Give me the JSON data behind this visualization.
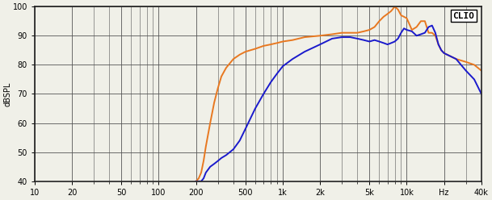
{
  "title": "CLIO",
  "ylabel": "dBSPL",
  "xlabel_ticks": [
    "10",
    "20",
    "50",
    "100",
    "200",
    "500",
    "1k",
    "2k",
    "5k",
    "10k",
    "Hz",
    "40k"
  ],
  "xlabel_freqs": [
    10,
    20,
    50,
    100,
    200,
    500,
    1000,
    2000,
    5000,
    10000,
    20000,
    40000
  ],
  "ylim": [
    40,
    100
  ],
  "xlim": [
    10,
    40000
  ],
  "yticks": [
    40,
    50,
    60,
    70,
    80,
    90,
    100
  ],
  "background_color": "#f0f0e8",
  "grid_color": "#555555",
  "orange_color": "#e87820",
  "blue_color": "#1a1acc",
  "orange_data": {
    "freq": [
      200,
      210,
      220,
      230,
      240,
      260,
      280,
      300,
      320,
      350,
      400,
      450,
      500,
      600,
      700,
      800,
      900,
      1000,
      1200,
      1500,
      2000,
      2500,
      3000,
      3500,
      4000,
      4500,
      5000,
      5500,
      6000,
      6500,
      7000,
      7500,
      8000,
      8500,
      9000,
      9500,
      10000,
      11000,
      12000,
      13000,
      14000,
      15000,
      16000,
      17000,
      18000,
      19000,
      20000,
      25000,
      30000,
      35000,
      40000
    ],
    "spl": [
      40,
      41,
      43,
      47,
      52,
      60,
      67,
      72,
      76,
      79,
      82,
      83.5,
      84.5,
      85.5,
      86.5,
      87,
      87.5,
      88,
      88.5,
      89.5,
      90,
      90.5,
      91,
      91,
      91,
      91.5,
      92,
      93,
      95,
      96.5,
      97.5,
      98.5,
      100,
      99,
      97,
      96.5,
      96,
      92,
      93,
      95,
      95,
      91,
      91,
      90,
      87,
      85,
      84,
      82,
      81,
      80,
      78
    ]
  },
  "blue_data": {
    "freq": [
      200,
      210,
      220,
      230,
      240,
      260,
      280,
      300,
      320,
      350,
      400,
      450,
      500,
      600,
      700,
      800,
      900,
      1000,
      1200,
      1500,
      2000,
      2500,
      3000,
      3500,
      4000,
      4500,
      5000,
      5500,
      6000,
      6500,
      7000,
      7500,
      8000,
      8500,
      9000,
      9500,
      10000,
      11000,
      12000,
      13000,
      14000,
      15000,
      16000,
      17000,
      18000,
      19000,
      20000,
      25000,
      30000,
      35000,
      40000
    ],
    "spl": [
      40,
      40,
      40,
      41,
      43,
      45,
      46,
      47,
      48,
      49,
      51,
      54,
      58,
      65,
      70,
      74,
      77,
      79.5,
      82,
      84.5,
      87,
      89,
      89.5,
      89.5,
      89,
      88.5,
      88,
      88.5,
      88,
      87.5,
      87,
      87.5,
      88,
      89,
      91,
      92.5,
      92,
      91.5,
      90,
      90.5,
      91,
      93,
      93.5,
      91,
      87,
      85,
      84,
      82,
      78,
      75,
      70
    ]
  }
}
